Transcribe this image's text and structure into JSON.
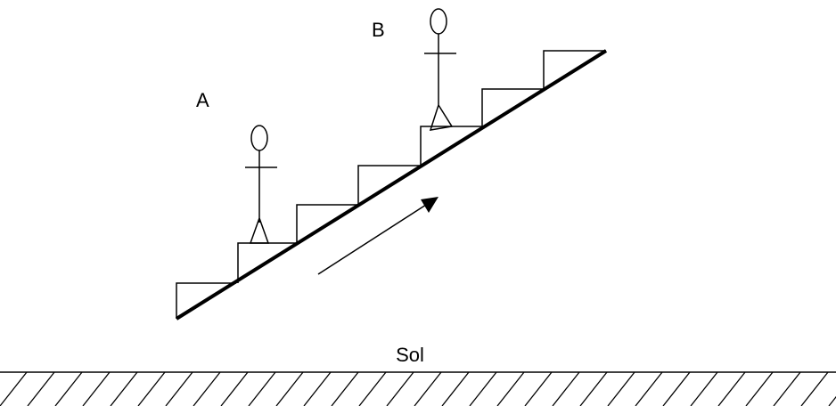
{
  "labels": {
    "a": "A",
    "b": "B",
    "ground": "Sol"
  }
}
